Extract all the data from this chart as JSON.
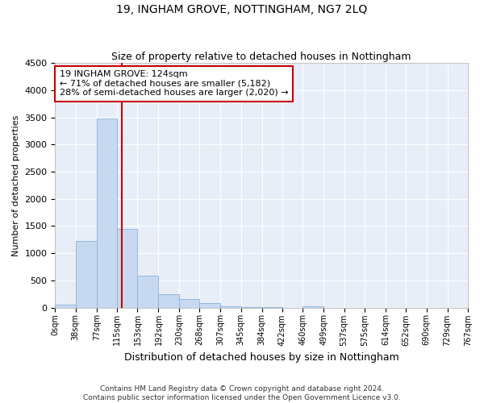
{
  "title": "19, INGHAM GROVE, NOTTINGHAM, NG7 2LQ",
  "subtitle": "Size of property relative to detached houses in Nottingham",
  "xlabel": "Distribution of detached houses by size in Nottingham",
  "ylabel": "Number of detached properties",
  "bin_edges": [
    0,
    38,
    77,
    115,
    153,
    192,
    230,
    268,
    307,
    345,
    384,
    422,
    460,
    499,
    537,
    575,
    614,
    652,
    690,
    729,
    767
  ],
  "bar_heights": [
    50,
    1230,
    3480,
    1450,
    590,
    250,
    150,
    75,
    30,
    10,
    8,
    0,
    30,
    0,
    0,
    0,
    0,
    0,
    0,
    0
  ],
  "bar_color": "#c6d9f0",
  "bar_edge_color": "#8ab0d8",
  "vline_x": 124,
  "vline_color": "#cc0000",
  "annotation_text": "19 INGHAM GROVE: 124sqm\n← 71% of detached houses are smaller (5,182)\n28% of semi-detached houses are larger (2,020) →",
  "annotation_box_color": "#ffffff",
  "annotation_box_edge_color": "#cc0000",
  "ylim": [
    0,
    4500
  ],
  "yticks": [
    0,
    500,
    1000,
    1500,
    2000,
    2500,
    3000,
    3500,
    4000,
    4500
  ],
  "bg_color": "#e8eef8",
  "grid_color": "#ffffff",
  "footer_text": "Contains HM Land Registry data © Crown copyright and database right 2024.\nContains public sector information licensed under the Open Government Licence v3.0.",
  "title_fontsize": 10,
  "subtitle_fontsize": 9,
  "tick_labels": [
    "0sqm",
    "38sqm",
    "77sqm",
    "115sqm",
    "153sqm",
    "192sqm",
    "230sqm",
    "268sqm",
    "307sqm",
    "345sqm",
    "384sqm",
    "422sqm",
    "460sqm",
    "499sqm",
    "537sqm",
    "575sqm",
    "614sqm",
    "652sqm",
    "690sqm",
    "729sqm",
    "767sqm"
  ]
}
